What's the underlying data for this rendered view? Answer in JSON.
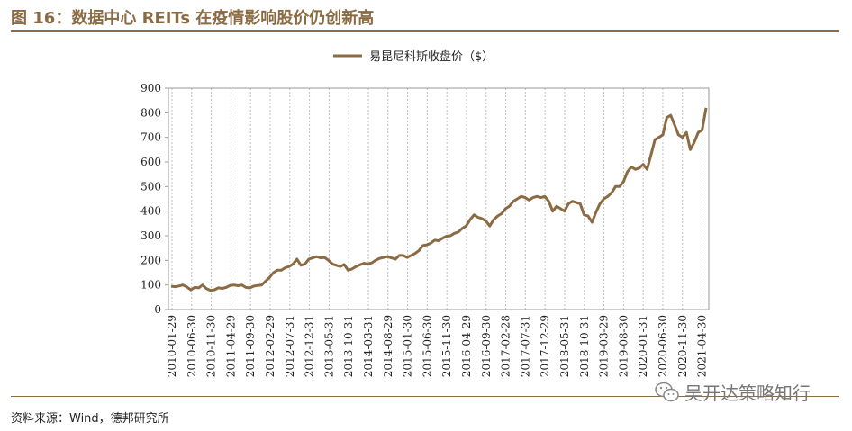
{
  "figure": {
    "title": "图 16：数据中心 REITs 在疫情影响股价仍创新高",
    "source": "资料来源：Wind，德邦研究所",
    "watermark": "吴开达策略知行",
    "watermark_icon": "wechat-icon"
  },
  "colors": {
    "accent": "#8B6B43",
    "line": "#8B6B43",
    "grid": "#BFBFBF"
  },
  "chart_data": {
    "type": "line",
    "title": "",
    "xlabel": "",
    "ylabel": "",
    "ylim": [
      0,
      900
    ],
    "yticks": [
      "0",
      "100",
      "200",
      "300",
      "400",
      "500",
      "600",
      "700",
      "800",
      "900"
    ],
    "grid": "vertical dashed",
    "legend_position": "top-center",
    "xtick_labels": [
      "2010-01-29",
      "2010-06-30",
      "2010-11-30",
      "2011-04-29",
      "2011-09-30",
      "2012-02-29",
      "2012-07-31",
      "2012-12-31",
      "2013-05-31",
      "2013-10-31",
      "2014-03-31",
      "2014-08-29",
      "2015-01-30",
      "2015-06-30",
      "2015-11-30",
      "2016-04-29",
      "2016-09-30",
      "2017-02-28",
      "2017-07-31",
      "2017-12-29",
      "2018-05-31",
      "2018-10-31",
      "2019-03-29",
      "2019-08-30",
      "2020-01-31",
      "2020-06-30",
      "2020-11-30",
      "2021-04-30"
    ],
    "series": [
      {
        "name": "易昆尼科斯收盘价（$）",
        "x": [
          "2010-01",
          "2010-02",
          "2010-03",
          "2010-04",
          "2010-05",
          "2010-06",
          "2010-07",
          "2010-08",
          "2010-09",
          "2010-10",
          "2010-11",
          "2010-12",
          "2011-01",
          "2011-02",
          "2011-03",
          "2011-04",
          "2011-05",
          "2011-06",
          "2011-07",
          "2011-08",
          "2011-09",
          "2011-10",
          "2011-11",
          "2011-12",
          "2012-01",
          "2012-02",
          "2012-03",
          "2012-04",
          "2012-05",
          "2012-06",
          "2012-07",
          "2012-08",
          "2012-09",
          "2012-10",
          "2012-11",
          "2012-12",
          "2013-01",
          "2013-02",
          "2013-03",
          "2013-04",
          "2013-05",
          "2013-06",
          "2013-07",
          "2013-08",
          "2013-09",
          "2013-10",
          "2013-11",
          "2013-12",
          "2014-01",
          "2014-02",
          "2014-03",
          "2014-04",
          "2014-05",
          "2014-06",
          "2014-07",
          "2014-08",
          "2014-09",
          "2014-10",
          "2014-11",
          "2014-12",
          "2015-01",
          "2015-02",
          "2015-03",
          "2015-04",
          "2015-05",
          "2015-06",
          "2015-07",
          "2015-08",
          "2015-09",
          "2015-10",
          "2015-11",
          "2015-12",
          "2016-01",
          "2016-02",
          "2016-03",
          "2016-04",
          "2016-05",
          "2016-06",
          "2016-07",
          "2016-08",
          "2016-09",
          "2016-10",
          "2016-11",
          "2016-12",
          "2017-01",
          "2017-02",
          "2017-03",
          "2017-04",
          "2017-05",
          "2017-06",
          "2017-07",
          "2017-08",
          "2017-09",
          "2017-10",
          "2017-11",
          "2017-12",
          "2018-01",
          "2018-02",
          "2018-03",
          "2018-04",
          "2018-05",
          "2018-06",
          "2018-07",
          "2018-08",
          "2018-09",
          "2018-10",
          "2018-11",
          "2018-12",
          "2019-01",
          "2019-02",
          "2019-03",
          "2019-04",
          "2019-05",
          "2019-06",
          "2019-07",
          "2019-08",
          "2019-09",
          "2019-10",
          "2019-11",
          "2019-12",
          "2020-01",
          "2020-02",
          "2020-03",
          "2020-04",
          "2020-05",
          "2020-06",
          "2020-07",
          "2020-08",
          "2020-09",
          "2020-10",
          "2020-11",
          "2020-12",
          "2021-01",
          "2021-02",
          "2021-03",
          "2021-04",
          "2021-05"
        ],
        "values": [
          95,
          93,
          96,
          100,
          92,
          80,
          90,
          88,
          100,
          85,
          78,
          80,
          88,
          86,
          90,
          98,
          100,
          97,
          100,
          90,
          88,
          95,
          98,
          100,
          115,
          130,
          150,
          160,
          160,
          170,
          175,
          185,
          205,
          180,
          185,
          205,
          210,
          215,
          210,
          212,
          200,
          185,
          180,
          175,
          183,
          160,
          165,
          175,
          182,
          188,
          185,
          190,
          200,
          208,
          212,
          215,
          210,
          205,
          220,
          220,
          212,
          220,
          228,
          240,
          260,
          263,
          270,
          282,
          280,
          290,
          298,
          300,
          310,
          315,
          330,
          340,
          365,
          385,
          375,
          370,
          360,
          340,
          365,
          380,
          390,
          410,
          420,
          440,
          450,
          460,
          455,
          445,
          455,
          460,
          455,
          460,
          440,
          400,
          420,
          410,
          400,
          430,
          440,
          435,
          430,
          385,
          380,
          355,
          395,
          430,
          450,
          460,
          475,
          500,
          500,
          520,
          560,
          580,
          570,
          575,
          590,
          570,
          630,
          690,
          700,
          710,
          780,
          790,
          750,
          710,
          700,
          720,
          650,
          680,
          720,
          730,
          820
        ]
      }
    ]
  }
}
